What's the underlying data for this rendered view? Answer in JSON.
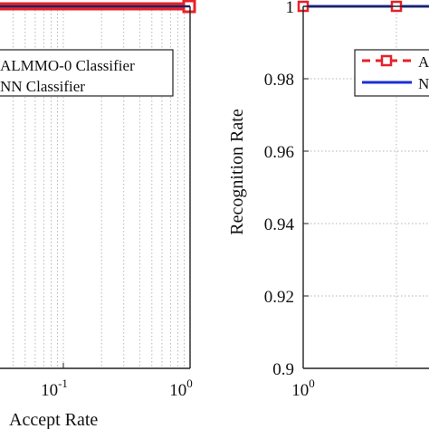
{
  "chart_data": [
    {
      "type": "line",
      "xscale": "log",
      "xlabel": "Accept Rate",
      "xlabel_visible": "Accept Rate",
      "ylabel": "",
      "xlim_log_exponents": [
        -2,
        0
      ],
      "x_ticks": [
        {
          "base": "10",
          "exp": "-1",
          "value": 0.1
        },
        {
          "base": "10",
          "exp": "0",
          "value": 1
        }
      ],
      "legend": {
        "placement": "top-left",
        "entries": [
          "ALMMO-0 Classifier",
          "NN Classifier"
        ],
        "entries_visible": [
          "ALMMO-0 Classifier",
          "NN Classifier"
        ]
      },
      "grid": true,
      "series": [
        {
          "name": "ALMMO-0 Classifier",
          "color": "#e8202a",
          "x": [
            0.01,
            1
          ],
          "y": [
            1,
            1
          ]
        },
        {
          "name": "NN Classifier",
          "color": "#1a2fd6",
          "x": [
            0.01,
            1
          ],
          "y": [
            1,
            1
          ]
        }
      ]
    },
    {
      "type": "line",
      "xscale": "log",
      "xlabel": "",
      "ylabel": "Recognition Rate",
      "ylim": [
        0.9,
        1.0
      ],
      "x_ticks": [
        {
          "base": "10",
          "exp": "0",
          "value": 1
        }
      ],
      "y_ticks": [
        "0.9",
        "0.92",
        "0.94",
        "0.96",
        "0.98",
        "1"
      ],
      "y_tick_values": [
        0.9,
        0.92,
        0.94,
        0.96,
        0.98,
        1.0
      ],
      "legend": {
        "placement": "top-right",
        "entries_visible": [
          "A",
          "N"
        ]
      },
      "grid": true,
      "series": [
        {
          "name": "ALMMO-0 Classifier",
          "color": "#e8202a",
          "x": [
            1,
            10,
            100
          ],
          "y": [
            1,
            1,
            1
          ]
        },
        {
          "name": "NN Classifier",
          "color": "#1a2fd6",
          "x": [
            1,
            10,
            100
          ],
          "y": [
            1,
            1,
            1
          ]
        }
      ]
    }
  ]
}
